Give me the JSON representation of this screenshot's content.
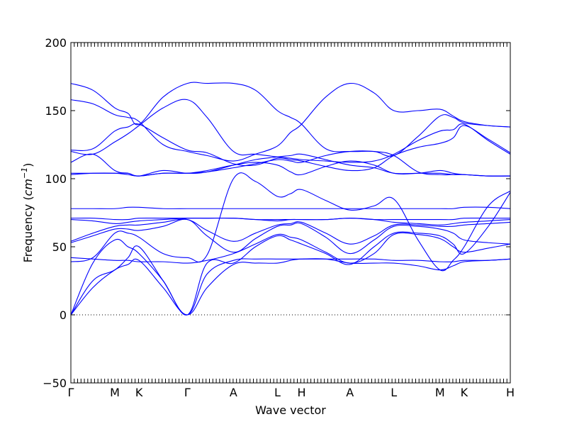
{
  "chart_data": {
    "type": "line",
    "title": "",
    "xlabel": "Wave vector",
    "ylabel": "Frequency (cm⁻¹)",
    "ylabel_prefix": "Frequency (",
    "ylabel_unit": "cm",
    "ylabel_exp": "−1",
    "ylabel_suffix": ")",
    "ylim": [
      -50,
      200
    ],
    "yticks": [
      -50,
      0,
      50,
      100,
      150,
      200
    ],
    "xlim": [
      0,
      10
    ],
    "grid": false,
    "line_color": "#0000ff",
    "zero_line": true,
    "high_symmetry_points": [
      {
        "label": "Γ",
        "x": 0
      },
      {
        "label": "M",
        "x": 1
      },
      {
        "label": "K",
        "x": 1.55
      },
      {
        "label": "Γ",
        "x": 2.65
      },
      {
        "label": "A",
        "x": 3.7
      },
      {
        "label": "L",
        "x": 4.7
      },
      {
        "label": "H",
        "x": 5.25
      },
      {
        "label": "A",
        "x": 6.35
      },
      {
        "label": "L",
        "x": 7.35
      },
      {
        "label": "M",
        "x": 8.4
      },
      {
        "label": "K",
        "x": 8.95
      },
      {
        "label": "H",
        "x": 10
      }
    ],
    "series": [
      {
        "x": [
          0,
          0.5,
          1,
          1.3,
          1.55,
          2.1,
          2.65,
          3.1,
          3.7,
          4.2,
          4.7,
          5.0,
          5.25,
          5.8,
          6.35,
          6.9,
          7.35,
          7.9,
          8.4,
          8.7,
          8.95,
          9.5,
          10
        ],
        "y": [
          0,
          20,
          33,
          37,
          40,
          20,
          0,
          20,
          37,
          38,
          38,
          40,
          41,
          41,
          38,
          38,
          38,
          36,
          33,
          36,
          39,
          40,
          41
        ]
      },
      {
        "x": [
          0,
          0.5,
          1,
          1.3,
          1.55,
          2.1,
          2.65,
          3.1,
          3.7,
          4.2,
          4.7,
          5.0,
          5.25,
          5.8,
          6.35,
          6.9,
          7.35,
          7.9,
          8.4,
          8.7,
          8.95,
          9.5,
          10
        ],
        "y": [
          0,
          25,
          33,
          42,
          50,
          25,
          0,
          30,
          40,
          41,
          41,
          41,
          41,
          41,
          41,
          41,
          40,
          40,
          39,
          39,
          40,
          40,
          41
        ]
      },
      {
        "x": [
          0,
          0.5,
          1,
          1.3,
          1.55,
          2.1,
          2.65,
          3.1,
          3.7,
          4.2,
          4.7,
          5.0,
          5.25,
          5.8,
          6.35,
          6.9,
          7.35,
          7.9,
          8.4,
          8.7,
          8.95,
          9.5,
          10
        ],
        "y": [
          0,
          38,
          55,
          50,
          45,
          25,
          0,
          38,
          38,
          50,
          58,
          55,
          52,
          45,
          37,
          50,
          60,
          60,
          58,
          52,
          45,
          65,
          90
        ]
      },
      {
        "x": [
          0,
          0.5,
          1,
          1.3,
          1.55,
          2.1,
          2.65,
          3.1,
          3.7,
          4.2,
          4.7,
          5.0,
          5.25,
          5.8,
          6.35,
          6.9,
          7.35,
          7.9,
          8.4,
          8.7,
          8.95,
          9.5,
          10
        ],
        "y": [
          39,
          42,
          60,
          60,
          57,
          45,
          42,
          44,
          100,
          98,
          87,
          89,
          92,
          84,
          77,
          80,
          85,
          55,
          33,
          40,
          50,
          80,
          91
        ]
      },
      {
        "x": [
          0,
          0.5,
          1,
          1.3,
          1.55,
          2.1,
          2.65,
          3.1,
          3.7,
          4.2,
          4.7,
          5.0,
          5.25,
          5.8,
          6.35,
          6.9,
          7.35,
          7.9,
          8.4,
          8.7,
          8.95,
          9.5,
          10
        ],
        "y": [
          42,
          41,
          40,
          40,
          39,
          39,
          38,
          40,
          45,
          52,
          59,
          57,
          55,
          46,
          38,
          45,
          59,
          59,
          56,
          50,
          46,
          49,
          52
        ]
      },
      {
        "x": [
          0,
          0.5,
          1,
          1.3,
          1.55,
          2.1,
          2.65,
          3.1,
          3.7,
          4.2,
          4.7,
          5.0,
          5.25,
          5.8,
          6.35,
          6.9,
          7.35,
          7.9,
          8.4,
          8.7,
          8.95,
          9.5,
          10
        ],
        "y": [
          53,
          58,
          63,
          63,
          62,
          65,
          70,
          58,
          46,
          56,
          65,
          66,
          67,
          57,
          45,
          55,
          65,
          65,
          63,
          60,
          55,
          53,
          52
        ]
      },
      {
        "x": [
          0,
          0.5,
          1,
          1.3,
          1.55,
          2.1,
          2.65,
          3.1,
          3.7,
          4.2,
          4.7,
          5.0,
          5.25,
          5.8,
          6.35,
          6.9,
          7.35,
          7.9,
          8.4,
          8.7,
          8.95,
          9.5,
          10
        ],
        "y": [
          54,
          60,
          65,
          66,
          66,
          68,
          70,
          62,
          54,
          60,
          66,
          67,
          68,
          60,
          52,
          58,
          66,
          66,
          65,
          65,
          66,
          67,
          68
        ]
      },
      {
        "x": [
          0,
          0.5,
          1,
          1.3,
          1.55,
          2.1,
          2.65,
          3.1,
          3.7,
          4.2,
          4.7,
          5.0,
          5.25,
          5.8,
          6.35,
          6.9,
          7.35,
          7.9,
          8.4,
          8.7,
          8.95,
          9.5,
          10
        ],
        "y": [
          70,
          69,
          67,
          68,
          69,
          70,
          71,
          71,
          71,
          70,
          69,
          70,
          70,
          70,
          71,
          70,
          68,
          67,
          66,
          67,
          68,
          69,
          70
        ]
      },
      {
        "x": [
          0,
          0.5,
          1,
          1.3,
          1.55,
          2.1,
          2.65,
          3.1,
          3.7,
          4.2,
          4.7,
          5.0,
          5.25,
          5.8,
          6.35,
          6.9,
          7.35,
          7.9,
          8.4,
          8.7,
          8.95,
          9.5,
          10
        ],
        "y": [
          71,
          71,
          70,
          70,
          71,
          71,
          71,
          71,
          71,
          70,
          70,
          70,
          70,
          70,
          71,
          70,
          70,
          70,
          70,
          70,
          71,
          71,
          71
        ]
      },
      {
        "x": [
          0,
          0.5,
          1,
          1.3,
          1.55,
          2.1,
          2.65,
          3.1,
          3.7,
          4.2,
          4.7,
          5.0,
          5.25,
          5.8,
          6.35,
          6.9,
          7.35,
          7.9,
          8.4,
          8.7,
          8.95,
          9.5,
          10
        ],
        "y": [
          78,
          78,
          78,
          79,
          79,
          78,
          78,
          78,
          78,
          78,
          78,
          78,
          78,
          78,
          78,
          78,
          78,
          78,
          78,
          78,
          79,
          79,
          78
        ]
      },
      {
        "x": [
          0,
          0.5,
          1,
          1.3,
          1.55,
          2.1,
          2.65,
          3.1,
          3.7,
          4.2,
          4.7,
          5.0,
          5.25,
          5.8,
          6.35,
          6.9,
          7.35,
          7.9,
          8.4,
          8.7,
          8.95,
          9.5,
          10
        ],
        "y": [
          103,
          104,
          104,
          103,
          102,
          104,
          104,
          105,
          108,
          111,
          114,
          113,
          112,
          117,
          120,
          120,
          117,
          105,
          103,
          103,
          103,
          102,
          102
        ]
      },
      {
        "x": [
          0,
          0.5,
          1,
          1.3,
          1.55,
          2.1,
          2.65,
          3.1,
          3.7,
          4.2,
          4.7,
          5.0,
          5.25,
          5.8,
          6.35,
          6.9,
          7.35,
          7.9,
          8.4,
          8.7,
          8.95,
          9.5,
          10
        ],
        "y": [
          104,
          104,
          104,
          104,
          102,
          106,
          104,
          105,
          110,
          114,
          116,
          117,
          118,
          114,
          110,
          108,
          104,
          104,
          104,
          103,
          103,
          102,
          102
        ]
      },
      {
        "x": [
          0,
          0.5,
          1,
          1.3,
          1.55,
          2.1,
          2.65,
          3.1,
          3.7,
          4.2,
          4.7,
          5.0,
          5.25,
          5.8,
          6.35,
          6.9,
          7.35,
          7.9,
          8.4,
          8.7,
          8.95,
          9.5,
          10
        ],
        "y": [
          112,
          118,
          106,
          104,
          102,
          104,
          104,
          106,
          110,
          112,
          110,
          105,
          103,
          109,
          113,
          110,
          104,
          104,
          106,
          104,
          103,
          102,
          102
        ]
      },
      {
        "x": [
          0,
          0.5,
          1,
          1.3,
          1.55,
          2.1,
          2.65,
          3.1,
          3.7,
          4.2,
          4.7,
          5.0,
          5.25,
          5.8,
          6.35,
          6.9,
          7.35,
          7.9,
          8.4,
          8.7,
          8.95,
          9.5,
          10
        ],
        "y": [
          120,
          118,
          127,
          133,
          139,
          152,
          158,
          145,
          120,
          118,
          116,
          115,
          114,
          113,
          112,
          113,
          118,
          128,
          135,
          136,
          140,
          128,
          118
        ]
      },
      {
        "x": [
          0,
          0.5,
          1,
          1.3,
          1.55,
          2.1,
          2.65,
          3.1,
          3.7,
          4.2,
          4.7,
          5.0,
          5.25,
          5.8,
          6.35,
          6.9,
          7.35,
          7.9,
          8.4,
          8.7,
          8.95,
          9.5,
          10
        ],
        "y": [
          121,
          122,
          135,
          138,
          140,
          130,
          121,
          119,
          111,
          110,
          115,
          114,
          113,
          109,
          106,
          108,
          117,
          123,
          126,
          130,
          139,
          129,
          119
        ]
      },
      {
        "x": [
          0,
          0.5,
          1,
          1.3,
          1.55,
          2.1,
          2.65,
          3.1,
          3.7,
          4.2,
          4.7,
          5.0,
          5.25,
          5.8,
          6.35,
          6.9,
          7.35,
          7.9,
          8.4,
          8.7,
          8.95,
          9.5,
          10
        ],
        "y": [
          158,
          155,
          147,
          145,
          142,
          125,
          120,
          117,
          113,
          118,
          124,
          134,
          140,
          160,
          170,
          163,
          150,
          150,
          151,
          146,
          142,
          139,
          138
        ]
      },
      {
        "x": [
          0,
          0.5,
          1,
          1.3,
          1.55,
          2.1,
          2.65,
          3.1,
          3.7,
          4.2,
          4.7,
          5.0,
          5.25,
          5.8,
          6.35,
          6.9,
          7.35,
          7.9,
          8.4,
          8.7,
          8.95,
          9.5,
          10
        ],
        "y": [
          170,
          165,
          152,
          148,
          140,
          160,
          170,
          170,
          170,
          165,
          150,
          145,
          140,
          122,
          120,
          120,
          117,
          131,
          146,
          145,
          141,
          139,
          138
        ]
      }
    ]
  }
}
